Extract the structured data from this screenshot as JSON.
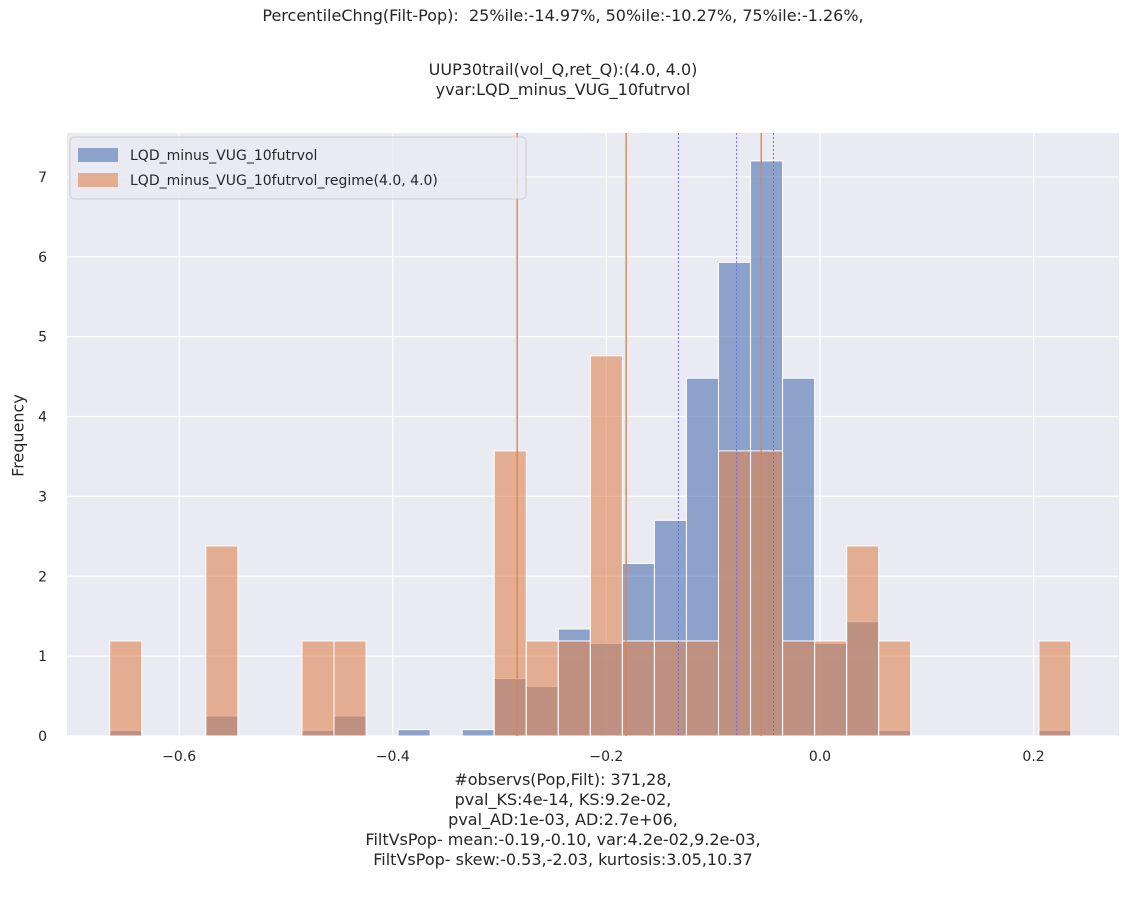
{
  "chart_data": {
    "type": "histogram",
    "title_lines": [
      "PercentileChng(Filt-Pop):  25%ile:-14.97%, 50%ile:-10.27%, 75%ile:-1.26%,",
      "UUP30trail(vol_Q,ret_Q):(4.0, 4.0)",
      "yvar:LQD_minus_VUG_10futrvol"
    ],
    "xlabel_lines": [
      "#observs(Pop,Filt): 371,28,",
      "pval_KS:4e-14, KS:9.2e-02,",
      "pval_AD:1e-03, AD:2.7e+06,",
      "FiltVsPop- mean:-0.19,-0.10, var:4.2e-02,9.2e-03,",
      "FiltVsPop- skew:-0.53,-2.03, kurtosis:3.05,10.37"
    ],
    "ylabel": "Frequency",
    "xlim": [
      -0.705,
      0.28
    ],
    "ylim": [
      0,
      7.55
    ],
    "x_ticks": [
      -0.6,
      -0.4,
      -0.2,
      0.0,
      0.2
    ],
    "x_tick_labels": [
      "−0.6",
      "−0.4",
      "−0.2",
      "0.0",
      "0.2"
    ],
    "y_ticks": [
      0,
      1,
      2,
      3,
      4,
      5,
      6,
      7
    ],
    "y_tick_labels": [
      "0",
      "1",
      "2",
      "3",
      "4",
      "5",
      "6",
      "7"
    ],
    "grid": true,
    "legend_position": "top-left",
    "bin_edges": [
      -0.665,
      -0.635,
      -0.605,
      -0.575,
      -0.545,
      -0.515,
      -0.485,
      -0.455,
      -0.425,
      -0.395,
      -0.365,
      -0.335,
      -0.305,
      -0.275,
      -0.245,
      -0.215,
      -0.185,
      -0.155,
      -0.125,
      -0.095,
      -0.065,
      -0.035,
      -0.005,
      0.025,
      0.055,
      0.085,
      0.115,
      0.145,
      0.175,
      0.205,
      0.235
    ],
    "series": [
      {
        "name": "LQD_minus_VUG_10futrvol",
        "color": "#4c72b0",
        "values": [
          0.07,
          0,
          0,
          0.25,
          0,
          0,
          0.07,
          0.25,
          0,
          0.08,
          0,
          0.08,
          0.72,
          0.62,
          1.34,
          1.16,
          2.16,
          2.7,
          4.48,
          5.93,
          7.2,
          4.48,
          1.16,
          1.43,
          0.07,
          0,
          0,
          0,
          0,
          0.07
        ]
      },
      {
        "name": "LQD_minus_VUG_10futrvol_regime(4.0, 4.0)",
        "color": "#dd8452",
        "values": [
          1.19,
          0,
          0,
          2.38,
          0,
          0,
          1.19,
          1.19,
          0,
          0,
          0,
          0,
          3.57,
          1.19,
          1.19,
          4.76,
          1.19,
          1.19,
          1.19,
          3.57,
          3.57,
          1.19,
          1.19,
          2.38,
          1.19,
          0,
          0,
          0,
          0,
          1.19
        ]
      }
    ],
    "vlines": [
      {
        "x": -0.2835,
        "color": "#dd8452",
        "style": "solid"
      },
      {
        "x": -0.1815,
        "color": "#dd8452",
        "style": "solid"
      },
      {
        "x": -0.1325,
        "color": "#6a6af0",
        "style": "dotted"
      },
      {
        "x": -0.078,
        "color": "#6a6af0",
        "style": "dotted"
      },
      {
        "x": -0.055,
        "color": "#dd8452",
        "style": "solid"
      },
      {
        "x": -0.0435,
        "color": "#6a6af0",
        "style": "dotted"
      }
    ]
  }
}
